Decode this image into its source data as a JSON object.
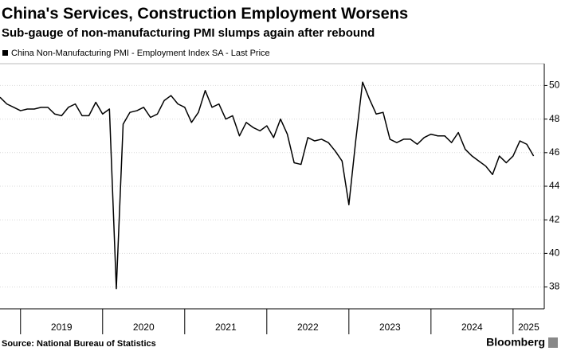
{
  "chart_data": {
    "type": "line",
    "title": "China's Services, Construction Employment Worsens",
    "subtitle": "Sub-gauge of non-manufacturing PMI slumps again after rebound",
    "source": "Source: National Bureau of Statistics",
    "brand": "Bloomberg",
    "x": [
      2018.75,
      2018.833,
      2018.917,
      2019.0,
      2019.083,
      2019.167,
      2019.25,
      2019.333,
      2019.417,
      2019.5,
      2019.583,
      2019.667,
      2019.75,
      2019.833,
      2019.917,
      2020.0,
      2020.083,
      2020.167,
      2020.25,
      2020.333,
      2020.417,
      2020.5,
      2020.583,
      2020.667,
      2020.75,
      2020.833,
      2020.917,
      2021.0,
      2021.083,
      2021.167,
      2021.25,
      2021.333,
      2021.417,
      2021.5,
      2021.583,
      2021.667,
      2021.75,
      2021.833,
      2021.917,
      2022.0,
      2022.083,
      2022.167,
      2022.25,
      2022.333,
      2022.417,
      2022.5,
      2022.583,
      2022.667,
      2022.75,
      2022.833,
      2022.917,
      2023.0,
      2023.083,
      2023.167,
      2023.25,
      2023.333,
      2023.417,
      2023.5,
      2023.583,
      2023.667,
      2023.75,
      2023.833,
      2023.917,
      2024.0,
      2024.083,
      2024.167,
      2024.25,
      2024.333,
      2024.417,
      2024.5,
      2024.583,
      2024.667,
      2024.75,
      2024.833,
      2024.917,
      2025.0,
      2025.083,
      2025.167,
      2025.25
    ],
    "series": [
      {
        "name": "China Non-Manufacturing PMI - Employment Index SA - Last Price",
        "color": "#000000",
        "values": [
          49.3,
          48.9,
          48.7,
          48.5,
          48.6,
          48.6,
          48.7,
          48.7,
          48.3,
          48.2,
          48.7,
          48.9,
          48.2,
          48.2,
          49.0,
          48.3,
          48.6,
          37.9,
          47.7,
          48.4,
          48.5,
          48.7,
          48.1,
          48.3,
          49.1,
          49.4,
          48.9,
          48.7,
          47.8,
          48.4,
          49.7,
          48.7,
          48.9,
          48.0,
          48.2,
          47.0,
          47.8,
          47.5,
          47.3,
          47.6,
          46.9,
          48.0,
          47.1,
          45.4,
          45.3,
          46.9,
          46.7,
          46.8,
          46.6,
          46.1,
          45.5,
          42.9,
          46.7,
          50.2,
          49.2,
          48.3,
          48.4,
          46.8,
          46.6,
          46.8,
          46.8,
          46.5,
          46.9,
          47.1,
          47.0,
          47.0,
          46.6,
          47.2,
          46.2,
          45.8,
          45.5,
          45.2,
          44.7,
          45.8,
          45.4,
          45.8,
          46.7,
          46.5,
          45.8
        ]
      }
    ],
    "xlim": [
      2018.75,
      2025.38
    ],
    "xticks": [
      2019,
      2020,
      2021,
      2022,
      2023,
      2024,
      2025
    ],
    "ylim": [
      36.7,
      51.3
    ],
    "yticks": [
      38,
      40,
      42,
      44,
      46,
      48,
      50
    ],
    "grid": true
  }
}
